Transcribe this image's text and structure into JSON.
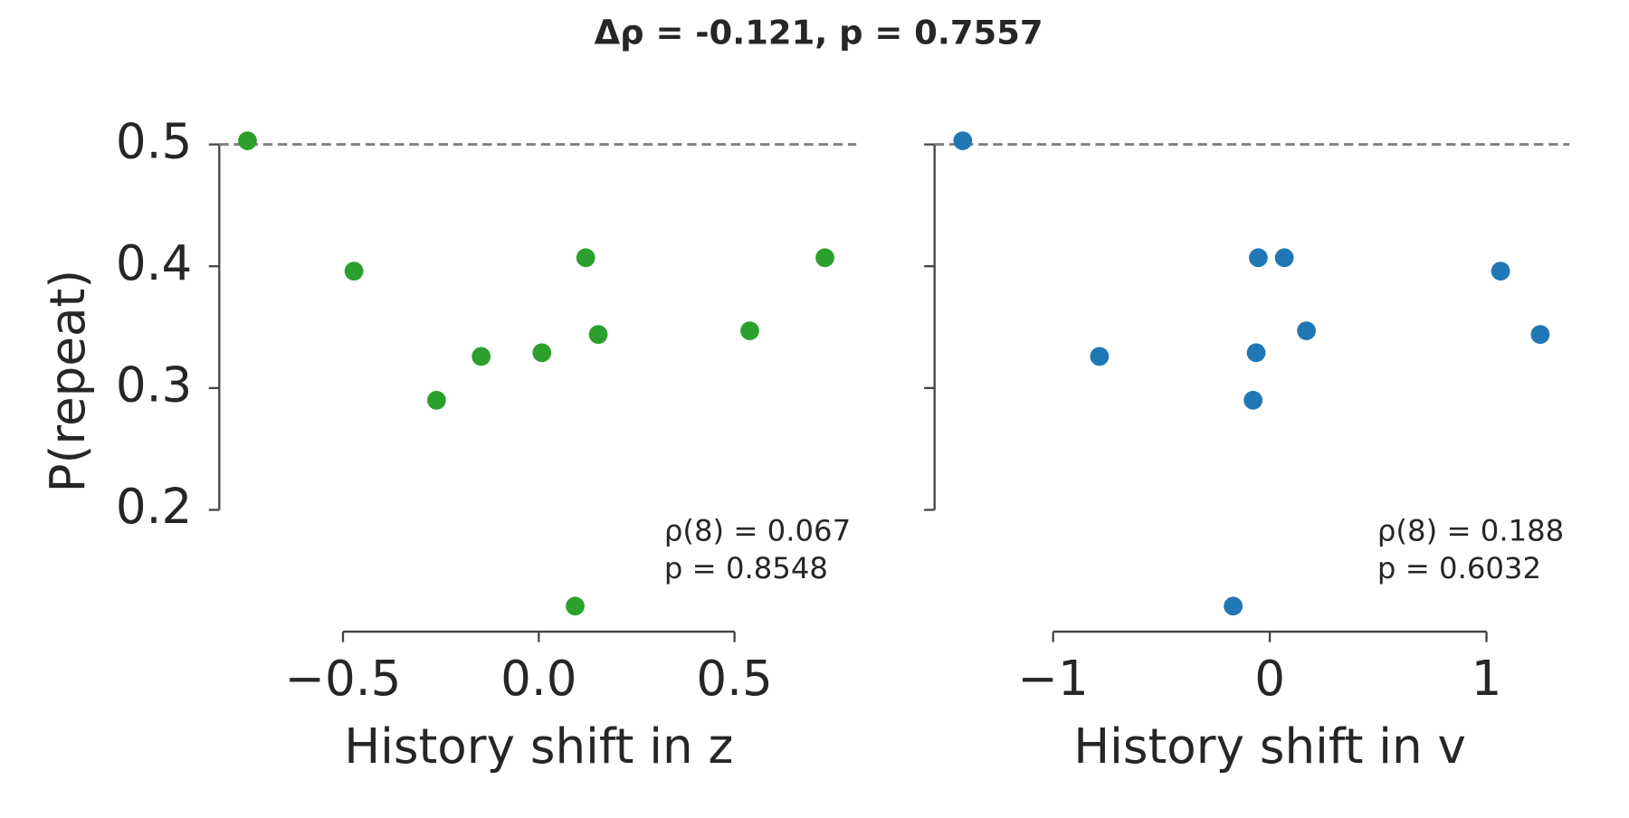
{
  "title": "Δρ = -0.121, p = 0.7557",
  "chart_data": [
    {
      "type": "scatter",
      "xlabel": "History shift in z",
      "ylabel": "P(repeat)",
      "color": "#2ca02c",
      "x": [
        -0.744,
        -0.472,
        -0.261,
        -0.147,
        0.008,
        0.12,
        0.152,
        0.093,
        0.539,
        0.731
      ],
      "values": [
        0.503,
        0.396,
        0.29,
        0.326,
        0.329,
        0.407,
        0.344,
        0.121,
        0.347,
        0.407
      ],
      "xlim": [
        -0.816,
        0.811
      ],
      "ylim": [
        0.1,
        0.52
      ],
      "xticks": [
        {
          "value": -0.5,
          "label": "−0.5"
        },
        {
          "value": 0,
          "label": "0.0"
        },
        0.5
      ],
      "yticks": [
        0.2,
        0.3,
        0.4,
        0.5
      ],
      "show_ytick_labels": true,
      "hline": 0.5,
      "annotation": [
        "ρ(8) = 0.067",
        "p = 0.8548"
      ]
    },
    {
      "type": "scatter",
      "xlabel": "History shift in v",
      "color": "#1f77b4",
      "x": [
        -1.417,
        -0.786,
        -0.053,
        0.067,
        -0.063,
        -0.077,
        0.169,
        -0.169,
        1.065,
        1.248
      ],
      "values": [
        0.503,
        0.326,
        0.407,
        0.407,
        0.329,
        0.29,
        0.347,
        0.121,
        0.396,
        0.344
      ],
      "xlim": [
        -1.547,
        1.383
      ],
      "ylim": [
        0.1,
        0.52
      ],
      "xticks": [
        {
          "value": -1,
          "label": "−1"
        },
        0,
        1
      ],
      "yticks": [
        0.2,
        0.3,
        0.4,
        0.5
      ],
      "show_ytick_labels": false,
      "hline": 0.5,
      "annotation": [
        "ρ(8) = 0.188",
        "p = 0.6032"
      ]
    }
  ]
}
